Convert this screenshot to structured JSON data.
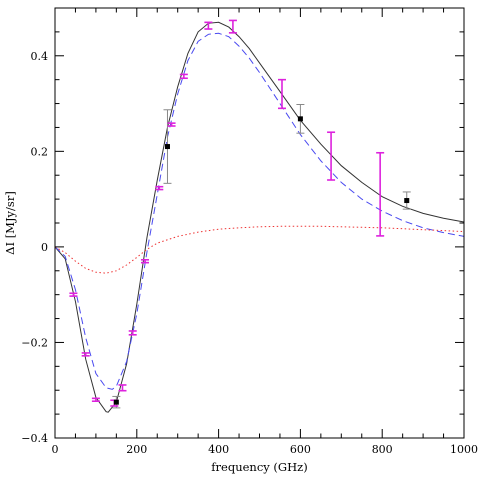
{
  "chart_data": {
    "type": "scatter",
    "xlabel": "frequency (GHz)",
    "ylabel": "ΔI [MJy/sr]",
    "xlim": [
      0,
      1000
    ],
    "ylim": [
      -0.4,
      0.5
    ],
    "x_ticks": [
      0,
      200,
      400,
      600,
      800,
      1000
    ],
    "y_ticks": [
      -0.4,
      -0.2,
      0,
      0.2,
      0.4
    ],
    "y_tick_labels": [
      "−0.4",
      "−0.2",
      "0",
      "0.2",
      "0.4"
    ],
    "grid": false,
    "colors": {
      "total_model": "#333333",
      "thermal_model": "#4a4af0",
      "kinematic_model": "#ee3333",
      "magenta_points": "#dd22dd",
      "black_points": "#000000",
      "black_errors": "#888888"
    },
    "series": [
      {
        "style": "solid",
        "color": "#333333",
        "x": [
          0,
          25,
          50,
          75,
          100,
          125,
          130,
          150,
          175,
          200,
          225,
          250,
          275,
          300,
          325,
          350,
          375,
          400,
          425,
          450,
          475,
          500,
          550,
          600,
          650,
          700,
          750,
          800,
          850,
          900,
          950,
          1000
        ],
        "y": [
          0,
          -0.025,
          -0.115,
          -0.235,
          -0.315,
          -0.345,
          -0.346,
          -0.325,
          -0.245,
          -0.12,
          0.02,
          0.14,
          0.25,
          0.335,
          0.405,
          0.45,
          0.468,
          0.47,
          0.46,
          0.44,
          0.415,
          0.385,
          0.325,
          0.265,
          0.215,
          0.17,
          0.135,
          0.105,
          0.085,
          0.07,
          0.06,
          0.052
        ]
      },
      {
        "style": "dashed",
        "color": "#4a4af0",
        "x": [
          0,
          25,
          50,
          75,
          100,
          125,
          140,
          150,
          175,
          200,
          225,
          250,
          275,
          300,
          325,
          350,
          375,
          400,
          425,
          450,
          475,
          500,
          550,
          600,
          650,
          700,
          750,
          800,
          850,
          900,
          950,
          1000
        ],
        "y": [
          0,
          -0.02,
          -0.09,
          -0.19,
          -0.265,
          -0.295,
          -0.298,
          -0.292,
          -0.24,
          -0.14,
          -0.01,
          0.11,
          0.23,
          0.32,
          0.39,
          0.43,
          0.445,
          0.447,
          0.44,
          0.42,
          0.395,
          0.365,
          0.3,
          0.235,
          0.18,
          0.135,
          0.1,
          0.075,
          0.055,
          0.04,
          0.03,
          0.022
        ]
      },
      {
        "style": "dotted",
        "color": "#ee3333",
        "x": [
          0,
          25,
          50,
          75,
          100,
          125,
          150,
          175,
          200,
          225,
          250,
          300,
          350,
          400,
          450,
          500,
          550,
          600,
          650,
          700,
          750,
          800,
          850,
          900,
          950,
          1000
        ],
        "y": [
          0,
          -0.012,
          -0.03,
          -0.045,
          -0.053,
          -0.055,
          -0.05,
          -0.038,
          -0.022,
          -0.005,
          0.008,
          0.022,
          0.031,
          0.037,
          0.04,
          0.042,
          0.043,
          0.043,
          0.043,
          0.042,
          0.041,
          0.04,
          0.038,
          0.036,
          0.034,
          0.032
        ]
      }
    ],
    "points_magenta": [
      {
        "x": 45,
        "y": -0.1,
        "err": 0.003
      },
      {
        "x": 75,
        "y": -0.225,
        "err": 0.003
      },
      {
        "x": 100,
        "y": -0.32,
        "err": 0.003
      },
      {
        "x": 145,
        "y": -0.327,
        "err": 0.006
      },
      {
        "x": 165,
        "y": -0.295,
        "err": 0.006
      },
      {
        "x": 190,
        "y": -0.18,
        "err": 0.004
      },
      {
        "x": 220,
        "y": -0.03,
        "err": 0.003
      },
      {
        "x": 255,
        "y": 0.123,
        "err": 0.003
      },
      {
        "x": 285,
        "y": 0.256,
        "err": 0.003
      },
      {
        "x": 315,
        "y": 0.357,
        "err": 0.004
      },
      {
        "x": 375,
        "y": 0.463,
        "err": 0.007
      },
      {
        "x": 435,
        "y": 0.461,
        "err": 0.013
      },
      {
        "x": 555,
        "y": 0.32,
        "err": 0.03
      },
      {
        "x": 675,
        "y": 0.19,
        "err": 0.05
      },
      {
        "x": 795,
        "y": 0.11,
        "err": 0.087
      }
    ],
    "points_black": [
      {
        "x": 150,
        "y": -0.325,
        "err": 0.012
      },
      {
        "x": 275,
        "y": 0.21,
        "err": 0.077
      },
      {
        "x": 600,
        "y": 0.268,
        "err": 0.03
      },
      {
        "x": 860,
        "y": 0.097,
        "err": 0.018
      }
    ]
  }
}
